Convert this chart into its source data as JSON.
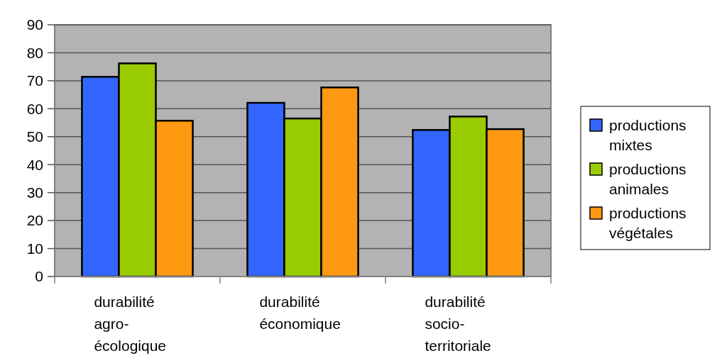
{
  "chart_data": {
    "type": "bar",
    "categories": [
      "durabilité agro-écologique",
      "durabilité économique",
      "durabilité socio-territoriale"
    ],
    "series": [
      {
        "name": "productions mixtes",
        "color": "#3366ff",
        "values": [
          71.4,
          62.1,
          52.4
        ]
      },
      {
        "name": "productions animales",
        "color": "#99cc00",
        "values": [
          76.2,
          56.5,
          57.2
        ]
      },
      {
        "name": "productions végétales",
        "color": "#ff9911",
        "values": [
          55.7,
          67.6,
          52.7
        ]
      }
    ],
    "ylim": [
      0,
      90
    ],
    "yticks": [
      0,
      10,
      20,
      30,
      40,
      50,
      60,
      70,
      80,
      90
    ],
    "grid": "y",
    "legend": "right"
  }
}
